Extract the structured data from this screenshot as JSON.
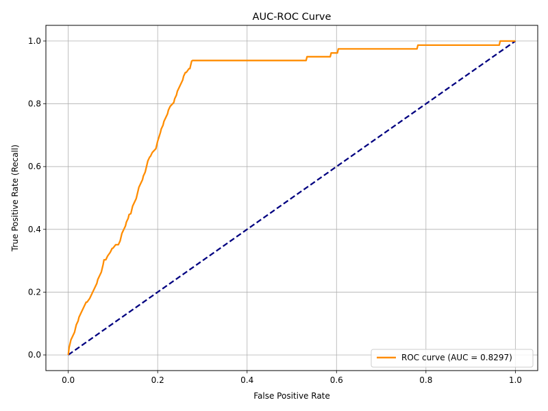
{
  "chart_data": {
    "type": "line",
    "title": "AUC-ROC Curve",
    "xlabel": "False Positive Rate",
    "ylabel": "True Positive Rate (Recall)",
    "xlim": [
      -0.05,
      1.05
    ],
    "ylim": [
      -0.05,
      1.05
    ],
    "xticks": [
      0.0,
      0.2,
      0.4,
      0.6,
      0.8,
      1.0
    ],
    "yticks": [
      0.0,
      0.2,
      0.4,
      0.6,
      0.8,
      1.0
    ],
    "xtick_labels": [
      "0.0",
      "0.2",
      "0.4",
      "0.6",
      "0.8",
      "1.0"
    ],
    "ytick_labels": [
      "0.0",
      "0.2",
      "0.4",
      "0.6",
      "0.8",
      "1.0"
    ],
    "grid": true,
    "legend_position": "lower-right",
    "series": [
      {
        "name": "ROC curve (AUC = 0.8297)",
        "color": "#ff8c00",
        "style": "solid",
        "x": [
          0.0,
          0.002,
          0.004,
          0.006,
          0.01,
          0.014,
          0.016,
          0.018,
          0.022,
          0.024,
          0.028,
          0.032,
          0.036,
          0.04,
          0.042,
          0.048,
          0.052,
          0.056,
          0.06,
          0.064,
          0.066,
          0.07,
          0.074,
          0.076,
          0.078,
          0.08,
          0.084,
          0.088,
          0.094,
          0.098,
          0.1,
          0.106,
          0.112,
          0.116,
          0.118,
          0.12,
          0.124,
          0.128,
          0.13,
          0.134,
          0.136,
          0.14,
          0.142,
          0.144,
          0.148,
          0.152,
          0.154,
          0.156,
          0.158,
          0.162,
          0.166,
          0.168,
          0.172,
          0.174,
          0.176,
          0.178,
          0.182,
          0.184,
          0.188,
          0.196,
          0.198,
          0.2,
          0.206,
          0.208,
          0.212,
          0.214,
          0.218,
          0.222,
          0.224,
          0.228,
          0.236,
          0.238,
          0.242,
          0.244,
          0.248,
          0.252,
          0.256,
          0.258,
          0.262,
          0.264,
          0.27,
          0.272,
          0.274,
          0.276,
          0.278,
          0.532,
          0.534,
          0.586,
          0.588,
          0.602,
          0.604,
          0.78,
          0.782,
          0.964,
          0.966,
          1.0
        ],
        "y": [
          0.0,
          0.024,
          0.036,
          0.048,
          0.06,
          0.072,
          0.084,
          0.096,
          0.108,
          0.12,
          0.132,
          0.144,
          0.156,
          0.168,
          0.168,
          0.18,
          0.192,
          0.204,
          0.216,
          0.228,
          0.24,
          0.252,
          0.264,
          0.276,
          0.288,
          0.303,
          0.303,
          0.315,
          0.327,
          0.339,
          0.34,
          0.351,
          0.351,
          0.363,
          0.375,
          0.387,
          0.399,
          0.411,
          0.423,
          0.435,
          0.447,
          0.45,
          0.462,
          0.474,
          0.486,
          0.498,
          0.51,
          0.522,
          0.534,
          0.546,
          0.558,
          0.57,
          0.582,
          0.594,
          0.606,
          0.618,
          0.63,
          0.633,
          0.645,
          0.657,
          0.669,
          0.681,
          0.708,
          0.72,
          0.732,
          0.744,
          0.756,
          0.768,
          0.78,
          0.792,
          0.804,
          0.816,
          0.828,
          0.84,
          0.852,
          0.864,
          0.876,
          0.888,
          0.9,
          0.9,
          0.912,
          0.912,
          0.924,
          0.936,
          0.938,
          0.938,
          0.95,
          0.95,
          0.962,
          0.962,
          0.975,
          0.975,
          0.987,
          0.987,
          1.0,
          1.0
        ]
      },
      {
        "name": "",
        "color": "#000080",
        "style": "dashed",
        "x": [
          0.0,
          1.0
        ],
        "y": [
          0.0,
          1.0
        ]
      }
    ]
  }
}
